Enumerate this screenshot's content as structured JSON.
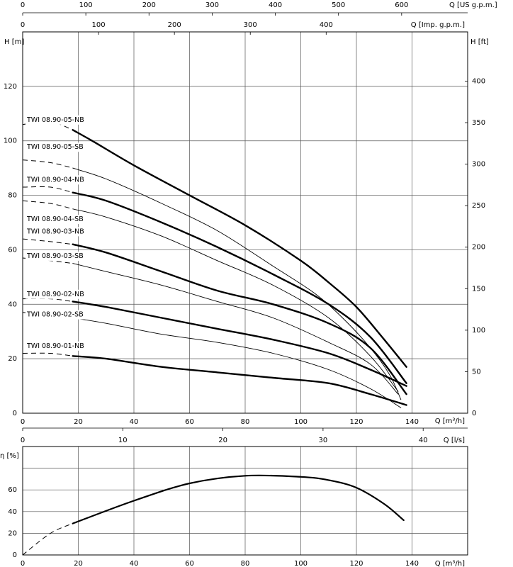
{
  "chart_data": [
    {
      "type": "line",
      "title": "",
      "xlabel": "Q [m³/h]",
      "ylabel": "H [m]",
      "xlim": [
        0,
        160
      ],
      "ylim": [
        0,
        140
      ],
      "x_ticks": [
        0,
        20,
        40,
        60,
        80,
        100,
        120,
        140
      ],
      "y_ticks": [
        0,
        20,
        40,
        60,
        80,
        100,
        120
      ],
      "grid": true,
      "secondary_axes": {
        "top_us": {
          "label": "Q [US g.p.m.]",
          "ticks": [
            "0",
            "100",
            "200",
            "300",
            "400",
            "500",
            "600"
          ]
        },
        "top_imp": {
          "label": "Q [Imp. g.p.m.]",
          "ticks": [
            "0",
            "100",
            "200",
            "300",
            "400"
          ]
        },
        "right_ft": {
          "label": "H [ft]",
          "ticks": [
            "0",
            "50",
            "100",
            "150",
            "200",
            "250",
            "300",
            "350",
            "400"
          ]
        },
        "bottom_ls": {
          "label": "Q [l/s]",
          "ticks": [
            "0",
            "10",
            "20",
            "30",
            "40"
          ]
        }
      },
      "series": [
        {
          "name": "TWI 08.90-05-NB",
          "style": "bold",
          "label_y": 107,
          "x": [
            0,
            10,
            18,
            25,
            40,
            60,
            80,
            100,
            110,
            120,
            130,
            138
          ],
          "y": [
            106,
            107,
            104,
            100,
            91,
            80,
            69,
            56,
            48,
            39,
            27,
            17
          ]
        },
        {
          "name": "TWI 08.90-05-SB",
          "style": "thin",
          "label_y": 97,
          "x": [
            0,
            10,
            18,
            30,
            50,
            70,
            90,
            105,
            115,
            125,
            132,
            136
          ],
          "y": [
            93,
            92,
            90,
            86,
            77,
            67,
            54,
            44,
            35,
            24,
            14,
            5
          ]
        },
        {
          "name": "TWI 08.90-04-NB",
          "style": "bold",
          "label_y": 85,
          "x": [
            0,
            10,
            18,
            30,
            50,
            70,
            90,
            110,
            125,
            138
          ],
          "y": [
            83,
            83,
            81,
            78,
            70,
            61,
            51,
            40,
            28,
            11
          ]
        },
        {
          "name": "TWI 08.90-04-SB",
          "style": "thin",
          "label_y": 70.5,
          "x": [
            0,
            10,
            18,
            30,
            50,
            70,
            90,
            110,
            125,
            135
          ],
          "y": [
            78,
            77,
            75,
            72,
            65,
            56,
            47,
            35,
            21,
            8
          ]
        },
        {
          "name": "TWI 08.90-03-NB",
          "style": "bold",
          "label_y": 66,
          "x": [
            0,
            10,
            18,
            30,
            50,
            70,
            90,
            110,
            125,
            138
          ],
          "y": [
            64,
            63,
            62,
            59,
            52,
            45,
            40,
            33,
            24,
            7
          ]
        },
        {
          "name": "TWI 08.90-03-SB",
          "style": "thin",
          "label_y": 57,
          "x": [
            0,
            10,
            18,
            30,
            50,
            70,
            90,
            110,
            125,
            135
          ],
          "y": [
            57,
            56,
            55,
            52,
            47,
            41,
            35,
            26,
            18,
            7
          ]
        },
        {
          "name": "TWI 08.90-02-NB",
          "style": "bold",
          "label_y": 43,
          "x": [
            0,
            10,
            18,
            30,
            50,
            70,
            90,
            110,
            125,
            138
          ],
          "y": [
            42,
            42,
            41,
            39,
            35,
            31,
            27,
            22,
            16,
            10
          ]
        },
        {
          "name": "TWI 08.90-02-SB",
          "style": "thin",
          "label_y": 35.5,
          "x": [
            0,
            10,
            18,
            30,
            50,
            70,
            90,
            110,
            125,
            136
          ],
          "y": [
            37,
            36,
            35,
            33,
            29,
            26,
            22,
            16,
            9,
            2
          ]
        },
        {
          "name": "TWI 08.90-01-NB",
          "style": "bold",
          "label_y": 24,
          "x": [
            0,
            10,
            18,
            30,
            50,
            70,
            90,
            110,
            125,
            138
          ],
          "y": [
            22,
            22,
            21,
            20,
            17,
            15,
            13,
            11,
            7,
            3
          ]
        }
      ]
    },
    {
      "type": "line",
      "title": "",
      "xlabel": "Q [m³/h]",
      "ylabel": "η [%]",
      "xlim": [
        0,
        160
      ],
      "ylim": [
        0,
        100
      ],
      "x_ticks": [
        0,
        20,
        40,
        60,
        80,
        100,
        120,
        140
      ],
      "y_ticks": [
        0,
        20,
        40,
        60
      ],
      "grid": true,
      "series": [
        {
          "name": "",
          "style": "bold",
          "x": [
            0,
            10,
            18,
            40,
            60,
            80,
            100,
            110,
            120,
            130,
            137
          ],
          "y": [
            0,
            20,
            29,
            50,
            66,
            73,
            72,
            69,
            62,
            47,
            32
          ]
        }
      ]
    }
  ]
}
